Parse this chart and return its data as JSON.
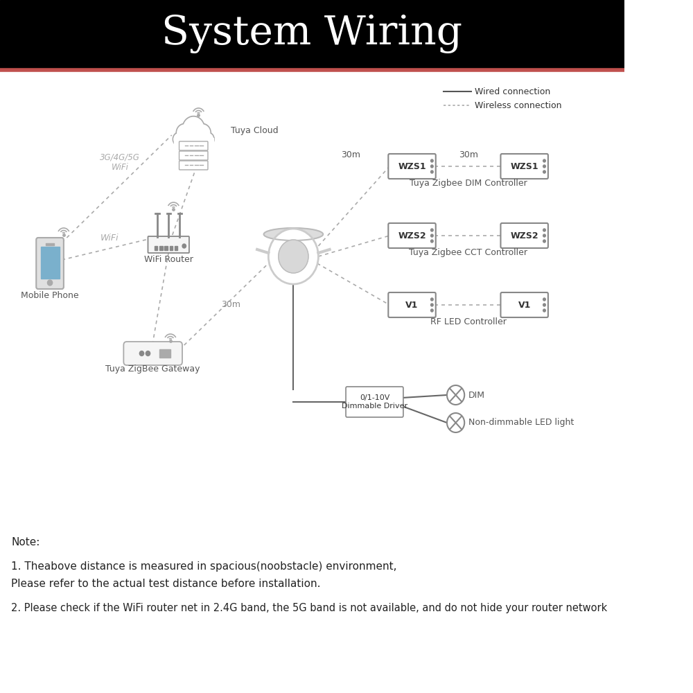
{
  "title": "System Wiring",
  "title_bg": "#000000",
  "title_color": "#ffffff",
  "title_fontsize": 42,
  "accent_line_color": "#c0504d",
  "bg_color": "#ffffff",
  "note_lines": [
    "Note:",
    "1. Theabove distance is measured in spacious(noobstacle) environment,",
    "Please refer to the actual test distance before installation.",
    "2. Please check if the WiFi router net in 2.4G band, the 5G band is not available, and do not hide your router network"
  ],
  "legend_wired": "Wired connection",
  "legend_wireless": "Wireless connection",
  "mobile_phone_label": "Mobile Phone",
  "wifi_router_label": "WiFi Router",
  "tuya_cloud_label": "Tuya Cloud",
  "tuya_gw_label": "Tuya ZigBee Gateway",
  "wifi_label": "WiFi",
  "label_3g": "3G/4G/5G\nWiFi",
  "label_30m_gw": "30m",
  "label_30m_left": "30m",
  "label_30m_right": "30m",
  "wzs1_label": "Tuya Zigbee DIM Controller",
  "wzs2_label": "Tuya Zigbee CCT Controller",
  "v1_label": "RF LED Controller",
  "dim_label": "DIM",
  "nondim_label": "Non-dimmable LED light",
  "driver_label": "0/1-10V\nDimmable Driver",
  "gray": "#aaaaaa",
  "darkgray": "#555555",
  "lightgray": "#cccccc",
  "black": "#222222"
}
